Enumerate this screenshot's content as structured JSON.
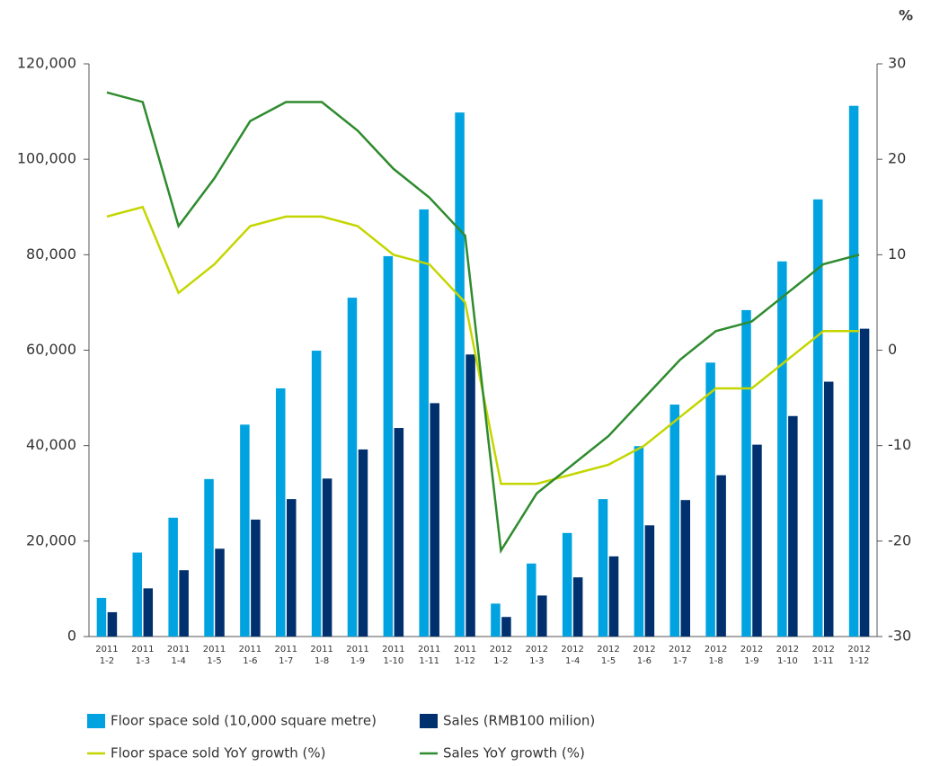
{
  "chart_data": {
    "type": "bar",
    "y2_label": "%",
    "categories": [
      [
        "2011",
        "1-2"
      ],
      [
        "2011",
        "1-3"
      ],
      [
        "2011",
        "1-4"
      ],
      [
        "2011",
        "1-5"
      ],
      [
        "2011",
        "1-6"
      ],
      [
        "2011",
        "1-7"
      ],
      [
        "2011",
        "1-8"
      ],
      [
        "2011",
        "1-9"
      ],
      [
        "2011",
        "1-10"
      ],
      [
        "2011",
        "1-11"
      ],
      [
        "2011",
        "1-12"
      ],
      [
        "2012",
        "1-2"
      ],
      [
        "2012",
        "1-3"
      ],
      [
        "2012",
        "1-4"
      ],
      [
        "2012",
        "1-5"
      ],
      [
        "2012",
        "1-6"
      ],
      [
        "2012",
        "1-7"
      ],
      [
        "2012",
        "1-8"
      ],
      [
        "2012",
        "1-9"
      ],
      [
        "2012",
        "1-10"
      ],
      [
        "2012",
        "1-11"
      ],
      [
        "2012",
        "1-12"
      ]
    ],
    "series": [
      {
        "name": "Floor space sold (10,000 square metre)",
        "type": "bar",
        "color": "#00a3e0",
        "values": [
          8100,
          17600,
          24900,
          33000,
          44400,
          52000,
          59900,
          71000,
          79700,
          89500,
          109800,
          6900,
          15300,
          21700,
          28800,
          39900,
          48600,
          57400,
          68400,
          78600,
          91600,
          111200
        ]
      },
      {
        "name": "Sales (RMB100 milion)",
        "type": "bar",
        "color": "#00306e",
        "values": [
          5100,
          10100,
          13900,
          18400,
          24500,
          28800,
          33100,
          39200,
          43700,
          48900,
          59100,
          4100,
          8600,
          12400,
          16800,
          23300,
          28600,
          33800,
          40200,
          46200,
          53400,
          64500
        ]
      },
      {
        "name": "Floor space sold YoY growth (%)",
        "type": "line",
        "axis": "y2",
        "color": "#c4d600",
        "values": [
          14,
          15,
          6,
          9,
          13,
          14,
          14,
          13,
          10,
          9,
          5,
          -14,
          -14,
          -13,
          -12,
          -10,
          -7,
          -4,
          -4,
          -1,
          2,
          2
        ]
      },
      {
        "name": "Sales YoY growth (%)",
        "type": "line",
        "axis": "y2",
        "color": "#2e8b2e",
        "values": [
          27,
          26,
          13,
          18,
          24,
          26,
          26,
          23,
          19,
          16,
          12,
          -21,
          -15,
          -12,
          -9,
          -5,
          -1,
          2,
          3,
          6,
          9,
          10
        ]
      }
    ],
    "ylim": [
      0,
      120000
    ],
    "yticks": [
      0,
      {
        "value": 20000,
        "label": "20,000"
      },
      {
        "value": 40000,
        "label": "40,000"
      },
      {
        "value": 60000,
        "label": "60,000"
      },
      {
        "value": 80000,
        "label": "80,000"
      },
      {
        "value": 100000,
        "label": "100,000"
      },
      {
        "value": 120000,
        "label": "120,000"
      }
    ],
    "y2lim": [
      -30,
      30
    ],
    "y2ticks": [
      -30,
      -20,
      -10,
      0,
      10,
      20,
      30
    ],
    "grid": false
  }
}
